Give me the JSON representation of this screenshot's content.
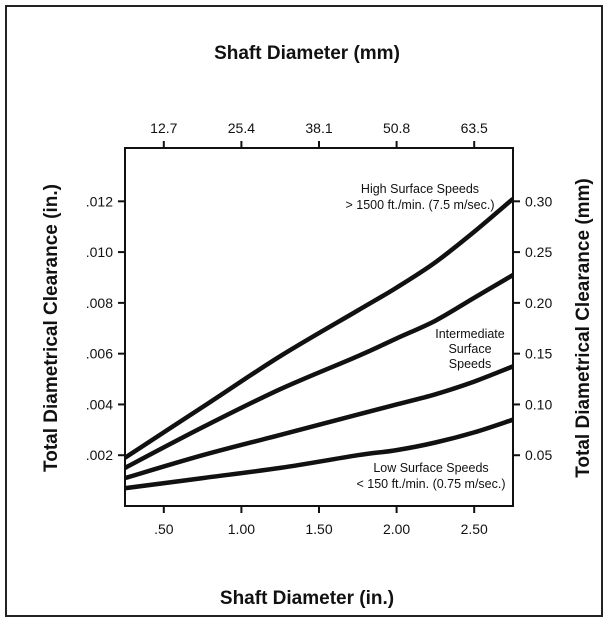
{
  "chart_data": {
    "type": "line",
    "title_top": "Shaft Diameter (mm)",
    "xlabel": "Shaft Diameter (in.)",
    "ylabel_left": "Total Diametrical Clearance (in.)",
    "ylabel_right": "Total Diametrical Clearance (mm)",
    "x_ticks": [
      ".50",
      "1.00",
      "1.50",
      "2.00",
      "2.50"
    ],
    "x_tick_values": [
      0.5,
      1.0,
      1.5,
      2.0,
      2.5
    ],
    "top_ticks": [
      "12.7",
      "25.4",
      "38.1",
      "50.8",
      "63.5"
    ],
    "top_tick_values": [
      0.5,
      1.0,
      1.5,
      2.0,
      2.5
    ],
    "y_ticks_left": [
      ".002",
      ".004",
      ".006",
      ".008",
      ".010",
      ".012"
    ],
    "y_tick_values_left": [
      0.002,
      0.004,
      0.006,
      0.008,
      0.01,
      0.012
    ],
    "y_ticks_right": [
      "0.05",
      "0.10",
      "0.15",
      "0.20",
      "0.25",
      "0.30"
    ],
    "y_tick_values_right": [
      0.002,
      0.004,
      0.006,
      0.008,
      0.01,
      0.012
    ],
    "xlim": [
      0.25,
      2.75
    ],
    "ylim": [
      0.0,
      0.0141
    ],
    "grid": false,
    "series": [
      {
        "x": [
          0.25,
          0.75,
          1.25,
          1.75,
          2.0,
          2.25,
          2.5,
          2.75
        ],
        "values": [
          0.0019,
          0.0039,
          0.0059,
          0.0077,
          0.0086,
          0.0096,
          0.0108,
          0.0121
        ]
      },
      {
        "x": [
          0.25,
          0.75,
          1.25,
          1.75,
          2.0,
          2.25,
          2.5,
          2.75
        ],
        "values": [
          0.0015,
          0.0031,
          0.0046,
          0.0059,
          0.0066,
          0.0073,
          0.0082,
          0.0091
        ]
      },
      {
        "x": [
          0.25,
          0.75,
          1.25,
          1.75,
          2.0,
          2.25,
          2.5,
          2.75
        ],
        "values": [
          0.0011,
          0.002,
          0.0028,
          0.0036,
          0.004,
          0.0044,
          0.0049,
          0.0055
        ]
      },
      {
        "x": [
          0.25,
          0.75,
          1.25,
          1.75,
          2.0,
          2.25,
          2.5,
          2.75
        ],
        "values": [
          0.0007,
          0.0011,
          0.0015,
          0.002,
          0.0022,
          0.0025,
          0.0029,
          0.0034
        ]
      }
    ],
    "annotations": {
      "high": [
        "High Surface Speeds",
        "> 1500 ft./min. (7.5 m/sec.)"
      ],
      "intermediate": [
        "Intermediate",
        "Surface",
        "Speeds"
      ],
      "low": [
        "Low Surface Speeds",
        "< 150 ft./min. (0.75 m/sec.)"
      ]
    }
  }
}
